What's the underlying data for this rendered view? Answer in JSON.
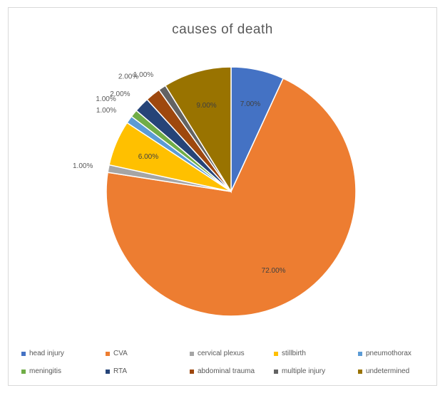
{
  "chart_data": {
    "type": "pie",
    "title": "causes of death",
    "slices": [
      {
        "label": "head injury",
        "value": 7.0,
        "display": "7.00%",
        "color": "#4472c4"
      },
      {
        "label": "CVA",
        "value": 72.0,
        "display": "72.00%",
        "color": "#ed7d31"
      },
      {
        "label": "cervical plexus",
        "value": 1.0,
        "display": "1.00%",
        "color": "#a5a5a5"
      },
      {
        "label": "stillbirth",
        "value": 6.0,
        "display": "6.00%",
        "color": "#ffc000"
      },
      {
        "label": "pneumothorax",
        "value": 1.0,
        "display": "1.00%",
        "color": "#5b9bd5"
      },
      {
        "label": "meningitis",
        "value": 1.0,
        "display": "1.00%",
        "color": "#70ad47"
      },
      {
        "label": "RTA",
        "value": 2.0,
        "display": "2.00%",
        "color": "#264478"
      },
      {
        "label": "abdominal trauma",
        "value": 2.0,
        "display": "2.00%",
        "color": "#9e480e"
      },
      {
        "label": "multiple injury",
        "value": 1.0,
        "display": "1.00%",
        "color": "#636363"
      },
      {
        "label": "undetermined",
        "value": 9.0,
        "display": "9.00%",
        "color": "#997300"
      }
    ],
    "legend_position": "bottom"
  }
}
